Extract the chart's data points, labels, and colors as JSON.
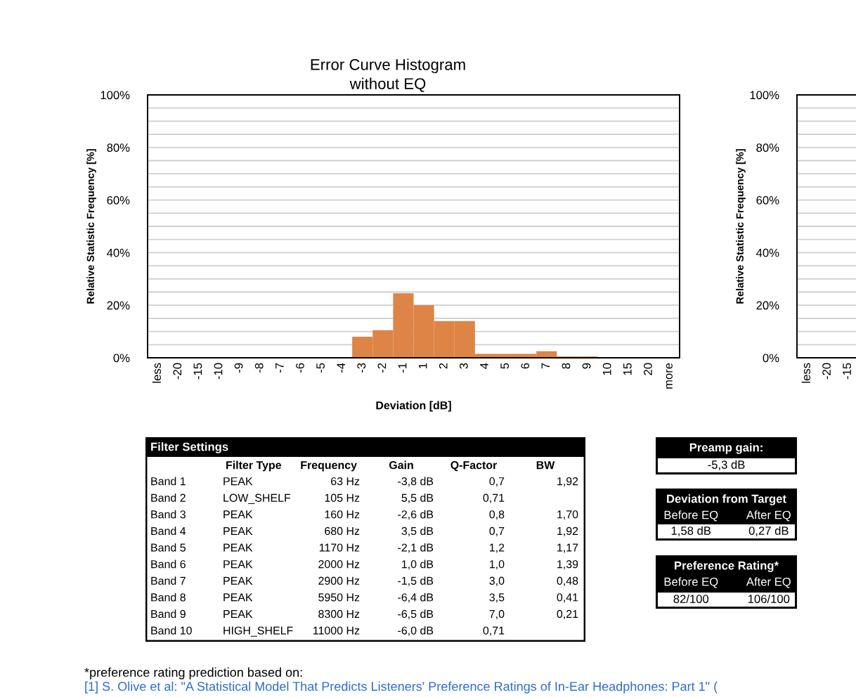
{
  "chart_data": [
    {
      "type": "bar",
      "title": "Error Curve Histogram\nwithout EQ",
      "xlabel": "Deviation [dB]",
      "ylabel": "Relative Statistic Frequency [%]",
      "categories": [
        "less",
        "-20",
        "-15",
        "-10",
        "-9",
        "-8",
        "-7",
        "-6",
        "-5",
        "-4",
        "-3",
        "-2",
        "-1",
        "1",
        "2",
        "3",
        "4",
        "5",
        "6",
        "7",
        "8",
        "9",
        "10",
        "15",
        "20",
        "more"
      ],
      "values": [
        0,
        0,
        0,
        0,
        0,
        0,
        0,
        0,
        0,
        0,
        8,
        10.5,
        24.5,
        20,
        14,
        14,
        1.5,
        1.5,
        1.5,
        2.5,
        0.5,
        0.5,
        0,
        0,
        0,
        0
      ],
      "color": "#dd8446",
      "ylim": [
        0,
        100
      ],
      "yticks": [
        {
          "value": 0,
          "label": "0%"
        },
        {
          "value": 5,
          "label": null
        },
        {
          "value": 10,
          "label": null
        },
        {
          "value": 15,
          "label": null
        },
        {
          "value": 20,
          "label": "20%"
        },
        {
          "value": 25,
          "label": null
        },
        {
          "value": 30,
          "label": null
        },
        {
          "value": 35,
          "label": null
        },
        {
          "value": 40,
          "label": "40%"
        },
        {
          "value": 45,
          "label": null
        },
        {
          "value": 50,
          "label": null
        },
        {
          "value": 55,
          "label": null
        },
        {
          "value": 60,
          "label": "60%"
        },
        {
          "value": 65,
          "label": null
        },
        {
          "value": 70,
          "label": null
        },
        {
          "value": 75,
          "label": null
        },
        {
          "value": 80,
          "label": "80%"
        },
        {
          "value": 85,
          "label": null
        },
        {
          "value": 90,
          "label": null
        },
        {
          "value": 95,
          "label": null
        },
        {
          "value": 100,
          "label": "100%"
        }
      ],
      "grid": "y"
    },
    {
      "type": "bar",
      "ylabel": "Relative Statistic Frequency [%]",
      "categories": [
        "less",
        "-20",
        "-15"
      ],
      "values": [
        0,
        0,
        0
      ],
      "ylim": [
        0,
        100
      ],
      "yticks": [
        {
          "value": 0,
          "label": "0%"
        },
        {
          "value": 5,
          "label": null
        },
        {
          "value": 10,
          "label": null
        },
        {
          "value": 15,
          "label": null
        },
        {
          "value": 20,
          "label": "20%"
        },
        {
          "value": 25,
          "label": null
        },
        {
          "value": 30,
          "label": null
        },
        {
          "value": 35,
          "label": null
        },
        {
          "value": 40,
          "label": "40%"
        },
        {
          "value": 45,
          "label": null
        },
        {
          "value": 50,
          "label": null
        },
        {
          "value": 55,
          "label": null
        },
        {
          "value": 60,
          "label": "60%"
        },
        {
          "value": 65,
          "label": null
        },
        {
          "value": 70,
          "label": null
        },
        {
          "value": 75,
          "label": null
        },
        {
          "value": 80,
          "label": "80%"
        },
        {
          "value": 85,
          "label": null
        },
        {
          "value": 90,
          "label": null
        },
        {
          "value": 95,
          "label": null
        },
        {
          "value": 100,
          "label": "100%"
        }
      ],
      "grid": "y"
    },
    {
      "type": "other",
      "title": "Filter Settings",
      "categories": [
        null,
        "Filter Type",
        "Frequency",
        "Gain",
        "Q-Factor",
        "BW"
      ],
      "y_categories": [
        "Band 1",
        "Band 2",
        "Band 3",
        "Band 4",
        "Band 5",
        "Band 6",
        "Band 7",
        "Band 8",
        "Band 9",
        "Band 10"
      ],
      "cell_labels": [
        [
          "PEAK",
          "63 Hz",
          "-3,8 dB",
          "0,7",
          "1,92"
        ],
        [
          "LOW_SHELF",
          "105 Hz",
          "5,5 dB",
          "0,71",
          null
        ],
        [
          "PEAK",
          "160 Hz",
          "-2,6 dB",
          "0,8",
          "1,70"
        ],
        [
          "PEAK",
          "680 Hz",
          "3,5 dB",
          "0,7",
          "1,92"
        ],
        [
          "PEAK",
          "1170 Hz",
          "-2,1 dB",
          "1,2",
          "1,17"
        ],
        [
          "PEAK",
          "2000 Hz",
          "1,0 dB",
          "1,0",
          "1,39"
        ],
        [
          "PEAK",
          "2900 Hz",
          "-1,5 dB",
          "3,0",
          "0,48"
        ],
        [
          "PEAK",
          "5950 Hz",
          "-6,4 dB",
          "3,5",
          "0,41"
        ],
        [
          "PEAK",
          "8300 Hz",
          "-6,5 dB",
          "7,0",
          "0,21"
        ],
        [
          "HIGH_SHELF",
          "11000 Hz",
          "-6,0 dB",
          "0,71",
          null
        ]
      ]
    },
    {
      "type": "other",
      "title": "Preamp gain:",
      "cell_labels": [
        [
          "-5,3 dB"
        ]
      ]
    },
    {
      "type": "other",
      "title": "Deviation from Target",
      "categories": [
        "Before EQ",
        "After EQ"
      ],
      "cell_labels": [
        [
          "1,58 dB",
          "0,27 dB"
        ]
      ]
    },
    {
      "type": "other",
      "title": "Preference Rating*",
      "categories": [
        "Before EQ",
        "After EQ"
      ],
      "cell_labels": [
        [
          "82/100",
          "106/100"
        ]
      ],
      "annotations": [
        "*preference rating prediction based on:",
        "[1] S. Olive et al: \"A Statistical Model That Predicts Listeners' Preference Ratings of In-Ear Headphones: Part 1\" ("
      ]
    }
  ]
}
